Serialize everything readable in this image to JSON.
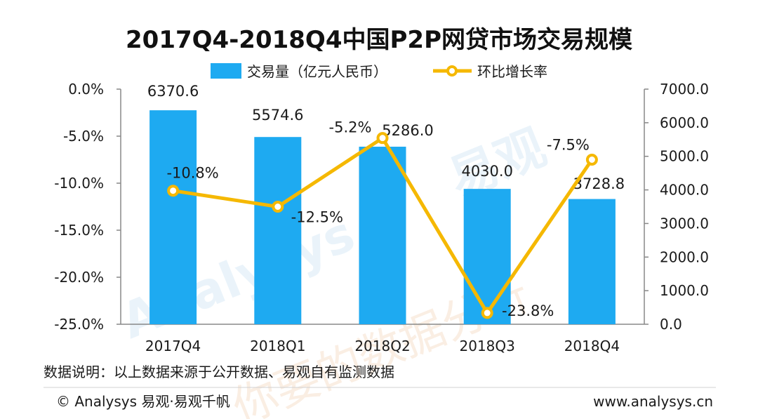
{
  "chart_data": {
    "type": "bar",
    "title": "2017Q4-2018Q4中国P2P网贷市场交易规模",
    "categories": [
      "2017Q4",
      "2018Q1",
      "2018Q2",
      "2018Q3",
      "2018Q4"
    ],
    "series": [
      {
        "name": "交易量（亿元人民币）",
        "type": "bar",
        "axis": "right",
        "values": [
          6370.6,
          5574.6,
          5286.0,
          4030.0,
          3728.8
        ],
        "labels": [
          "6370.6",
          "5574.6",
          "5286.0",
          "4030.0",
          "3728.8"
        ],
        "color": "#1eaaf1"
      },
      {
        "name": "环比增长率",
        "type": "line",
        "axis": "left",
        "values": [
          -10.8,
          -12.5,
          -5.2,
          -23.8,
          -7.5
        ],
        "labels": [
          "-10.8%",
          "-12.5%",
          "-5.2%",
          "-23.8%",
          "-7.5%"
        ],
        "color": "#f5b800"
      }
    ],
    "left_axis": {
      "ylim": [
        -25,
        0
      ],
      "ticks": [
        "0.0%",
        "-5.0%",
        "-10.0%",
        "-15.0%",
        "-20.0%",
        "-25.0%"
      ],
      "tick_values": [
        0,
        -5,
        -10,
        -15,
        -20,
        -25
      ]
    },
    "right_axis": {
      "ylim": [
        0,
        7000
      ],
      "ticks": [
        "7000.0",
        "6000.0",
        "5000.0",
        "4000.0",
        "3000.0",
        "2000.0",
        "1000.0",
        "0.0"
      ],
      "tick_values": [
        7000,
        6000,
        5000,
        4000,
        3000,
        2000,
        1000,
        0
      ]
    },
    "legend_placement": "top-center",
    "grid": false
  },
  "note": "数据说明：以上数据来源于公开数据、易观自有监测数据",
  "footer": {
    "left": "© Analysys 易观·易观千帆",
    "right": "www.analysys.cn"
  },
  "watermark": {
    "brand": "易观",
    "latin": "Analysys",
    "cn": "你要的数据分析"
  },
  "colors": {
    "bar": "#1eaaf1",
    "line": "#f5b800",
    "axis": "#888888"
  }
}
